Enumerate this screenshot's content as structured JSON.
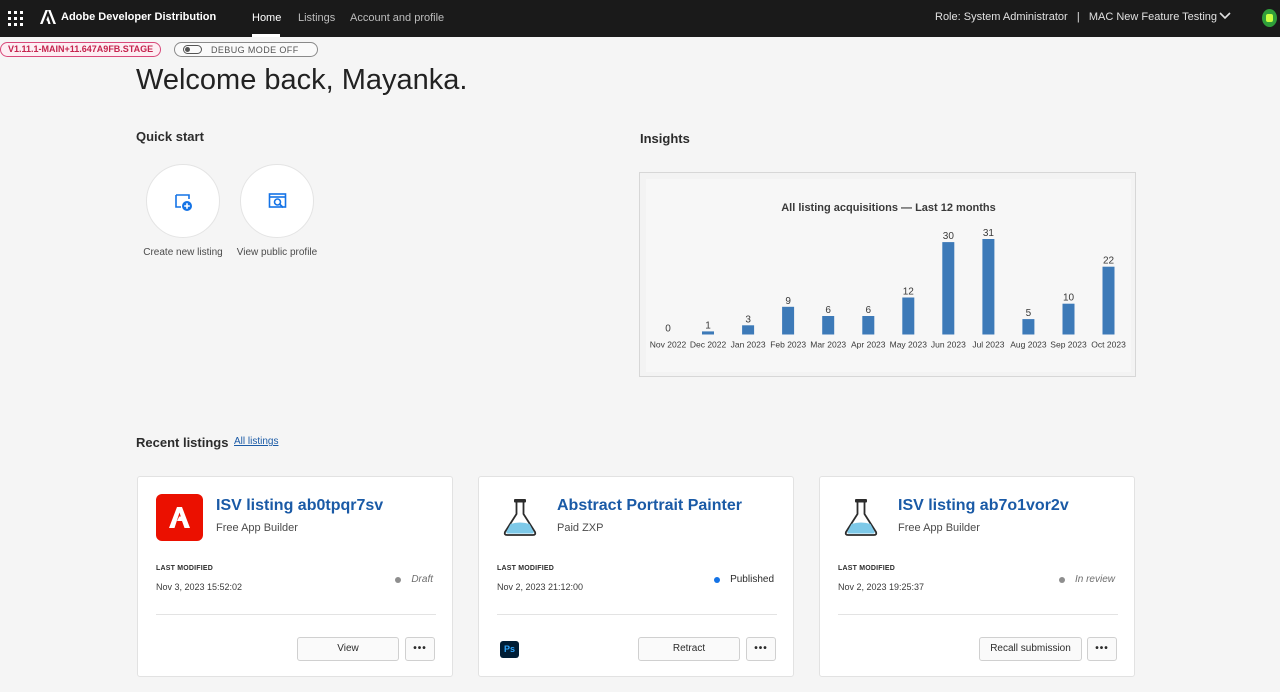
{
  "topbar": {
    "brand_name": "Adobe Developer Distribution",
    "nav": [
      {
        "label": "Home",
        "active": true
      },
      {
        "label": "Listings",
        "active": false
      },
      {
        "label": "Account and profile",
        "active": false
      }
    ],
    "role_text": "Role: System Administrator   |   MAC New Feature Testing"
  },
  "env": {
    "version": "V1.11.1-MAIN+11.647A9FB.STAGE",
    "debug_label": "DEBUG MODE OFF"
  },
  "welcome": "Welcome back, Mayanka.",
  "quick_start": {
    "title": "Quick start",
    "items": [
      {
        "label": "Create new listing",
        "icon": "create-listing-icon"
      },
      {
        "label": "View public profile",
        "icon": "view-profile-icon"
      }
    ]
  },
  "insights": {
    "title": "Insights"
  },
  "chart_data": {
    "type": "bar",
    "title": "All listing acquisitions — Last 12 months",
    "categories": [
      "Nov 2022",
      "Dec 2022",
      "Jan 2023",
      "Feb 2023",
      "Mar 2023",
      "Apr 2023",
      "May 2023",
      "Jun 2023",
      "Jul 2023",
      "Aug 2023",
      "Sep 2023",
      "Oct 2023"
    ],
    "values": [
      0,
      1,
      3,
      9,
      6,
      6,
      12,
      30,
      31,
      5,
      10,
      22
    ],
    "color": "#3d7ab8",
    "xlabel": "",
    "ylabel": ""
  },
  "recent": {
    "title": "Recent listings",
    "all_link": "All listings",
    "meta_label": "LAST MODIFIED",
    "cards": [
      {
        "title": "ISV listing ab0tpqr7sv",
        "subtitle": "Free App Builder",
        "date": "Nov 3, 2023 15:52:02",
        "status": "Draft",
        "icon": "adobe-logo-icon",
        "primary_button": "View"
      },
      {
        "title": "Abstract Portrait Painter",
        "subtitle": "Paid ZXP",
        "date": "Nov 2, 2023 21:12:00",
        "status": "Published",
        "icon": "flask-icon",
        "app_badge": "Ps",
        "primary_button": "Retract"
      },
      {
        "title": "ISV listing ab7o1vor2v",
        "subtitle": "Free App Builder",
        "date": "Nov 2, 2023 19:25:37",
        "status": "In review",
        "icon": "flask-icon",
        "primary_button": "Recall submission"
      }
    ],
    "more_label": "•••"
  }
}
